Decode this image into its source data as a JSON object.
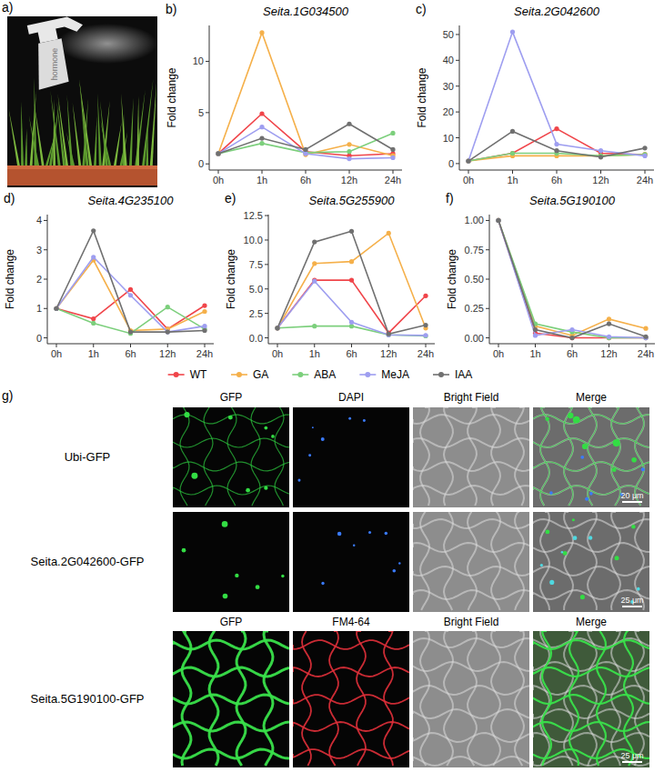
{
  "chart_data": [
    {
      "type": "line",
      "label": "b)",
      "title": "Seita.1G034500",
      "ylabel": "Fold change",
      "categories": [
        "0h",
        "1h",
        "6h",
        "12h",
        "24h"
      ],
      "marker": "circle",
      "grid": false,
      "series": [
        {
          "name": "WT",
          "color": "#f0454a",
          "values": [
            1,
            4.9,
            1.2,
            0.8,
            1.0
          ]
        },
        {
          "name": "GA",
          "color": "#f5b04a",
          "values": [
            1,
            12.8,
            0.9,
            1.9,
            0.8
          ]
        },
        {
          "name": "ABA",
          "color": "#7ccf7c",
          "values": [
            1,
            2.0,
            1.1,
            1.2,
            3.0
          ]
        },
        {
          "name": "MeJA",
          "color": "#9e9ef0",
          "values": [
            1,
            3.6,
            1.0,
            0.5,
            0.6
          ]
        },
        {
          "name": "IAA",
          "color": "#707070",
          "values": [
            1,
            2.5,
            1.4,
            3.9,
            1.4
          ]
        }
      ],
      "ylim": [
        -0.6,
        13.5
      ],
      "yticks": [
        0,
        5,
        10
      ]
    },
    {
      "type": "line",
      "label": "c)",
      "title": "Seita.2G042600",
      "ylabel": "Fold change",
      "categories": [
        "0h",
        "1h",
        "6h",
        "12h",
        "24h"
      ],
      "marker": "circle",
      "grid": false,
      "series": [
        {
          "name": "WT",
          "color": "#f0454a",
          "values": [
            1,
            4,
            13.5,
            4,
            3.5
          ]
        },
        {
          "name": "GA",
          "color": "#f5b04a",
          "values": [
            1,
            3,
            3,
            3,
            3.5
          ]
        },
        {
          "name": "ABA",
          "color": "#7ccf7c",
          "values": [
            1,
            4,
            4,
            3,
            3.5
          ]
        },
        {
          "name": "MeJA",
          "color": "#9e9ef0",
          "values": [
            1,
            51,
            7.5,
            5,
            3
          ]
        },
        {
          "name": "IAA",
          "color": "#707070",
          "values": [
            1,
            12.5,
            5,
            2.5,
            6
          ]
        }
      ],
      "ylim": [
        -2.5,
        53.5
      ],
      "yticks": [
        0,
        10,
        20,
        30,
        40,
        50
      ]
    },
    {
      "type": "line",
      "label": "d)",
      "title": "Seita.4G235100",
      "ylabel": "Fold change",
      "categories": [
        "0h",
        "1h",
        "6h",
        "12h",
        "24h"
      ],
      "marker": "circle",
      "grid": false,
      "series": [
        {
          "name": "WT",
          "color": "#f0454a",
          "values": [
            1,
            0.65,
            1.65,
            0.3,
            1.1
          ]
        },
        {
          "name": "GA",
          "color": "#f5b04a",
          "values": [
            1,
            2.65,
            0.25,
            0.3,
            0.9
          ]
        },
        {
          "name": "ABA",
          "color": "#7ccf7c",
          "values": [
            1,
            0.5,
            0.15,
            1.05,
            0.3
          ]
        },
        {
          "name": "MeJA",
          "color": "#9e9ef0",
          "values": [
            1,
            2.75,
            1.45,
            0.2,
            0.4
          ]
        },
        {
          "name": "IAA",
          "color": "#707070",
          "values": [
            1,
            3.65,
            0.2,
            0.2,
            0.25
          ]
        }
      ],
      "ylim": [
        -0.2,
        4.2
      ],
      "yticks": [
        0,
        1,
        2,
        3,
        4
      ]
    },
    {
      "type": "line",
      "label": "e)",
      "title": "Seita.5G255900",
      "ylabel": "Fold change",
      "categories": [
        "0h",
        "1h",
        "6h",
        "12h",
        "24h"
      ],
      "marker": "circle",
      "grid": false,
      "series": [
        {
          "name": "WT",
          "color": "#f0454a",
          "values": [
            1,
            5.9,
            5.9,
            0.5,
            4.3
          ]
        },
        {
          "name": "GA",
          "color": "#f5b04a",
          "values": [
            1,
            7.6,
            7.8,
            10.7,
            1.0
          ]
        },
        {
          "name": "ABA",
          "color": "#7ccf7c",
          "values": [
            1,
            1.2,
            1.2,
            0.3,
            0.2
          ]
        },
        {
          "name": "MeJA",
          "color": "#9e9ef0",
          "values": [
            1,
            5.8,
            1.6,
            0.3,
            0.25
          ]
        },
        {
          "name": "IAA",
          "color": "#707070",
          "values": [
            1,
            9.8,
            10.9,
            0.4,
            1.3
          ]
        }
      ],
      "ylim": [
        -0.6,
        12.6
      ],
      "yticks": [
        {
          "value": 0,
          "label": "0.0"
        },
        {
          "value": 2.5,
          "label": "2.5"
        },
        {
          "value": 5,
          "label": "5.0"
        },
        {
          "value": 7.5,
          "label": "7.5"
        },
        {
          "value": 10,
          "label": "10.0"
        },
        {
          "value": 12.5,
          "label": "12.5"
        }
      ]
    },
    {
      "type": "line",
      "label": "f)",
      "title": "Seita.5G190100",
      "ylabel": "Fold change",
      "categories": [
        "0h",
        "1h",
        "6h",
        "12h",
        "24h"
      ],
      "marker": "circle",
      "grid": false,
      "series": [
        {
          "name": "WT",
          "color": "#f0454a",
          "values": [
            1,
            0.04,
            0.0,
            0.0,
            0.0
          ]
        },
        {
          "name": "GA",
          "color": "#f5b04a",
          "values": [
            1,
            0.1,
            0.02,
            0.16,
            0.08
          ]
        },
        {
          "name": "ABA",
          "color": "#7ccf7c",
          "values": [
            1,
            0.12,
            0.05,
            0.0,
            0.0
          ]
        },
        {
          "name": "MeJA",
          "color": "#9e9ef0",
          "values": [
            1,
            0.02,
            0.07,
            0.01,
            0.0
          ]
        },
        {
          "name": "IAA",
          "color": "#707070",
          "values": [
            1,
            0.07,
            0.0,
            0.12,
            0.01
          ]
        }
      ],
      "ylim": [
        -0.05,
        1.05
      ],
      "yticks": [
        {
          "value": 0,
          "label": "0.00"
        },
        {
          "value": 0.25,
          "label": "0.25"
        },
        {
          "value": 0.5,
          "label": "0.50"
        },
        {
          "value": 0.75,
          "label": "0.75"
        },
        {
          "value": 1,
          "label": "1.00"
        }
      ]
    }
  ],
  "figure": {
    "a": {
      "label": "a)",
      "spray_text": "hormone"
    },
    "g": {
      "label": "g)",
      "rows": [
        {
          "name": "Ubi-GFP",
          "columns": [
            "GFP",
            "DAPI",
            "Bright Field",
            "Merge"
          ],
          "scale_bar": "20 μm"
        },
        {
          "name": "Seita.2G042600-GFP",
          "scale_bar": "25 μm"
        },
        {
          "name": "Seita.5G190100-GFP",
          "columns": [
            "GFP",
            "FM4-64",
            "Bright Field",
            "Merge"
          ],
          "scale_bar": "25 μm"
        }
      ]
    }
  }
}
